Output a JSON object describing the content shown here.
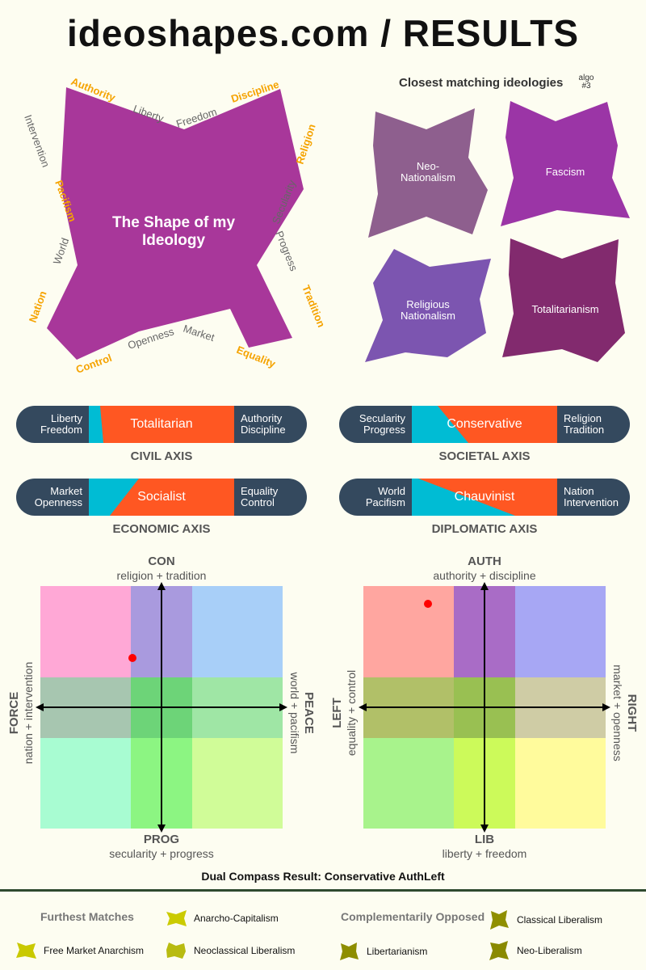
{
  "title": "ideoshapes.com / RESULTS",
  "shape": {
    "title_line1": "The Shape of my",
    "title_line2": "Ideology",
    "labels": {
      "authority": "Authority",
      "liberty": "Liberty",
      "freedom": "Freedom",
      "discipline": "Discipline",
      "religion": "Religion",
      "secularity": "Secularity",
      "progress": "Progress",
      "tradition": "Tradition",
      "equality": "Equality",
      "market": "Market",
      "openness": "Openness",
      "control": "Control",
      "nation": "Nation",
      "world": "World",
      "pacifism": "Pacifism",
      "intervention": "Intervention"
    }
  },
  "matches": {
    "heading": "Closest matching ideologies",
    "algo_line1": "algo",
    "algo_line2": "#3",
    "items": [
      {
        "line1": "Neo-",
        "line2": "Nationalism",
        "color": "#8e5f8e"
      },
      {
        "line1": "Fascism",
        "line2": "",
        "color": "#9b35a6"
      },
      {
        "line1": "Religious",
        "line2": "Nationalism",
        "color": "#7c55b0"
      },
      {
        "line1": "Totalitarianism",
        "line2": "",
        "color": "#822a6e"
      }
    ]
  },
  "axes": {
    "civil": {
      "left1": "Liberty",
      "left2": "Freedom",
      "label": "Totalitarian",
      "right1": "Authority",
      "right2": "Discipline",
      "name": "CIVIL AXIS"
    },
    "societal": {
      "left1": "Secularity",
      "left2": "Progress",
      "label": "Conservative",
      "right1": "Religion",
      "right2": "Tradition",
      "name": "SOCIETAL AXIS"
    },
    "economic": {
      "left1": "Market",
      "left2": "Openness",
      "label": "Socialist",
      "right1": "Equality",
      "right2": "Control",
      "name": "ECONOMIC AXIS"
    },
    "diplomatic": {
      "left1": "World",
      "left2": "Pacifism",
      "label": "Chauvinist",
      "right1": "Nation",
      "right2": "Intervention",
      "name": "DIPLOMATIC AXIS"
    }
  },
  "compass1": {
    "top": "CON",
    "top_sub": "religion + tradition",
    "bottom": "PROG",
    "bottom_sub": "secularity + progress",
    "left": "FORCE",
    "left_sub": "nation + intervention",
    "right": "PEACE",
    "right_sub": "world + pacifism"
  },
  "compass2": {
    "top": "AUTH",
    "top_sub": "authority + discipline",
    "bottom": "LIB",
    "bottom_sub": "liberty + freedom",
    "left": "LEFT",
    "left_sub": "equality + control",
    "right": "RIGHT",
    "right_sub": "market + openness"
  },
  "dual_result": "Dual Compass Result: Conservative AuthLeft",
  "footer": {
    "furthest_heading": "Furthest Matches",
    "opposed_heading": "Complementarily Opposed",
    "furthest": [
      "Anarcho-Capitalism",
      "Free Market Anarchism",
      "Neoclassical Liberalism"
    ],
    "opposed": [
      "Classical Liberalism",
      "Libertarianism",
      "Neo-Liberalism"
    ]
  },
  "colors": {
    "accent_label": "#f5a300",
    "gray_label": "#666666",
    "shape_main": "#a8379a",
    "bar_dark": "#34495e",
    "bar_orange": "#ff5722",
    "bar_cyan": "#00bcd4",
    "result_dot": "#ff0000"
  }
}
